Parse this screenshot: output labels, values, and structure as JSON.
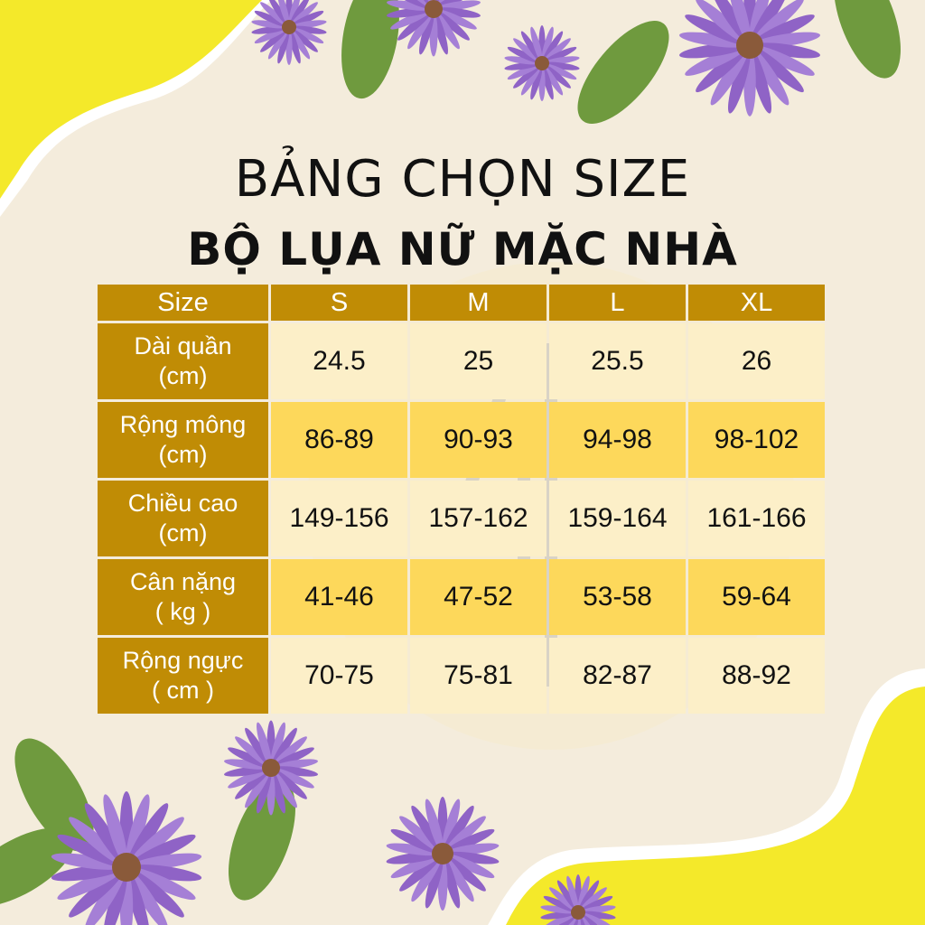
{
  "title_line1": "BẢNG CHỌN SIZE",
  "title_line2": "BỘ LỤA NỮ MẶC NHÀ",
  "colors": {
    "header": "#c08c05",
    "row_light": "#fcefc8",
    "row_yellow": "#fdd85b",
    "background": "#f4ecdc",
    "accent_yellow": "#f4e92a",
    "flower": "#a57fd6"
  },
  "table": {
    "header": [
      "Size",
      "S",
      "M",
      "L",
      "XL"
    ],
    "rows": [
      {
        "label1": "Dài quần",
        "label2": "(cm)",
        "values": [
          "24.5",
          "25",
          "25.5",
          "26"
        ]
      },
      {
        "label1": "Rộng mông",
        "label2": "(cm)",
        "values": [
          "86-89",
          "90-93",
          "94-98",
          "98-102"
        ]
      },
      {
        "label1": "Chiều cao",
        "label2": "(cm)",
        "values": [
          "149-156",
          "157-162",
          "159-164",
          "161-166"
        ]
      },
      {
        "label1": "Cân nặng",
        "label2": "( kg )",
        "values": [
          "41-46",
          "47-52",
          "53-58",
          "59-64"
        ]
      },
      {
        "label1": "Rộng ngực",
        "label2": "( cm )",
        "values": [
          "70-75",
          "75-81",
          "82-87",
          "88-92"
        ]
      }
    ]
  }
}
